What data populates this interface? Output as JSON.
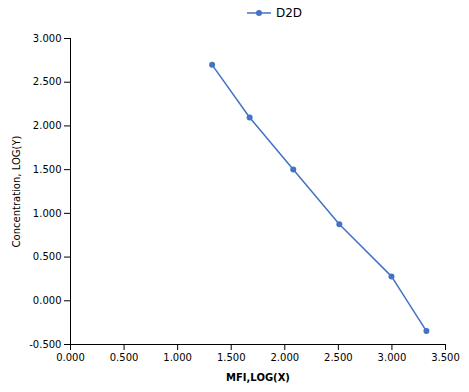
{
  "chart_data": {
    "type": "line",
    "xlabel": "MFI,LOG(X)",
    "ylabel": "Concentration, LOG(Y)",
    "x": [
      1.322,
      1.672,
      2.079,
      2.509,
      2.996,
      3.322
    ],
    "series": [
      {
        "name": "D2D",
        "color": "#4472C4",
        "marker": "circle",
        "values": [
          2.699,
          2.097,
          1.501,
          0.875,
          0.279,
          -0.347
        ]
      }
    ],
    "xlim": [
      0.0,
      3.5
    ],
    "ylim": [
      -0.5,
      3.0
    ],
    "xticks": [
      {
        "value": 0.0,
        "label": "0.000"
      },
      {
        "value": 0.5,
        "label": "0.500"
      },
      {
        "value": 1.0,
        "label": "1.000"
      },
      {
        "value": 1.5,
        "label": "1.500"
      },
      {
        "value": 2.0,
        "label": "2.000"
      },
      {
        "value": 2.5,
        "label": "2.500"
      },
      {
        "value": 3.0,
        "label": "3.000"
      },
      {
        "value": 3.5,
        "label": "3.500"
      }
    ],
    "yticks": [
      {
        "value": -0.5,
        "label": "-0.500"
      },
      {
        "value": 0.0,
        "label": "0.000"
      },
      {
        "value": 0.5,
        "label": "0.500"
      },
      {
        "value": 1.0,
        "label": "1.000"
      },
      {
        "value": 1.5,
        "label": "1.500"
      },
      {
        "value": 2.0,
        "label": "2.000"
      },
      {
        "value": 2.5,
        "label": "2.500"
      },
      {
        "value": 3.0,
        "label": "3.000"
      }
    ],
    "grid": false,
    "legend": "top"
  }
}
